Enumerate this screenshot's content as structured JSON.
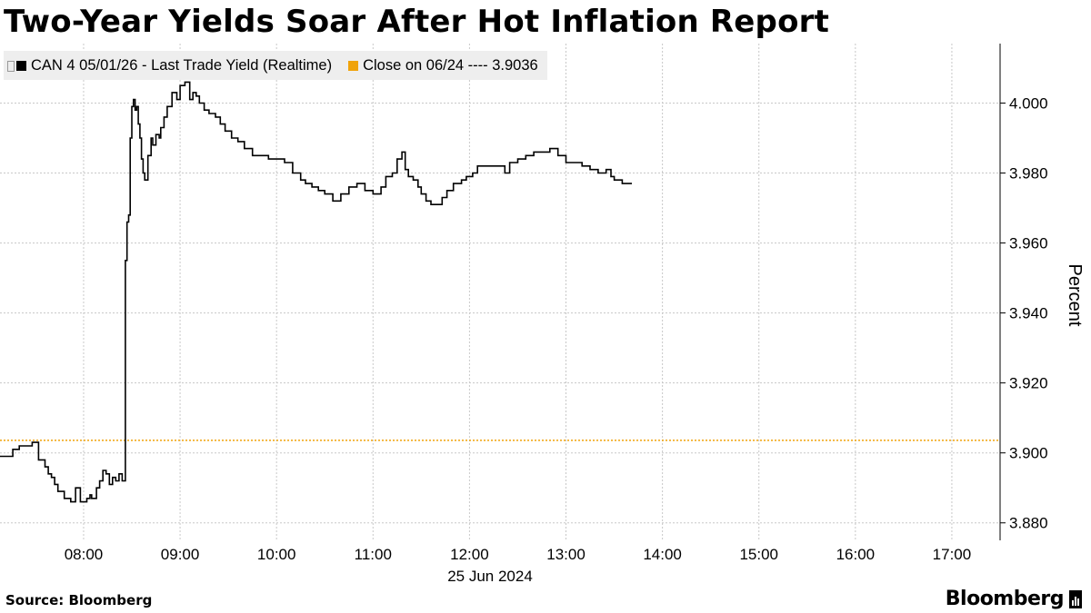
{
  "title": "Two-Year Yields Soar After Hot Inflation Report",
  "legend": {
    "series_label": "CAN 4 05/01/26 - Last Trade Yield (Realtime)",
    "close_label": "Close on 06/24 ---- 3.9036",
    "series_color": "#000000",
    "close_color": "#f0a30a"
  },
  "footer": {
    "source": "Source: Bloomberg",
    "brand": "Bloomberg"
  },
  "chart_data": {
    "type": "line",
    "ylabel": "Percent",
    "date_label": "25 Jun 2024",
    "ylim": [
      3.875,
      4.017
    ],
    "xlim": [
      "07:08",
      "17:30"
    ],
    "y_ticks": [
      "3.880",
      "3.900",
      "3.920",
      "3.940",
      "3.960",
      "3.980",
      "4.000"
    ],
    "x_ticks": [
      "08:00",
      "09:00",
      "10:00",
      "11:00",
      "12:00",
      "13:00",
      "14:00",
      "15:00",
      "16:00",
      "17:00"
    ],
    "grid": true,
    "reference_line": {
      "name": "Close on 06/24",
      "value": 3.9036
    },
    "series": [
      {
        "name": "CAN 4 05/01/26 - Last Trade Yield (Realtime)",
        "x": [
          "07:08",
          "07:12",
          "07:16",
          "07:20",
          "07:25",
          "07:28",
          "07:32",
          "07:36",
          "07:38",
          "07:40",
          "07:42",
          "07:44",
          "07:48",
          "07:52",
          "07:55",
          "07:58",
          "08:00",
          "08:02",
          "08:04",
          "08:05",
          "08:08",
          "08:10",
          "08:12",
          "08:14",
          "08:16",
          "08:18",
          "08:20",
          "08:22",
          "08:24",
          "08:26",
          "08:27",
          "08:28",
          "08:29",
          "08:30",
          "08:31",
          "08:32",
          "08:33",
          "08:34",
          "08:35",
          "08:36",
          "08:37",
          "08:38",
          "08:40",
          "08:42",
          "08:43",
          "08:45",
          "08:47",
          "08:48",
          "08:50",
          "08:52",
          "08:55",
          "08:58",
          "09:00",
          "09:03",
          "09:06",
          "09:08",
          "09:10",
          "09:12",
          "09:15",
          "09:18",
          "09:22",
          "09:25",
          "09:28",
          "09:32",
          "09:36",
          "09:40",
          "09:45",
          "09:50",
          "09:55",
          "10:00",
          "10:05",
          "10:10",
          "10:15",
          "10:18",
          "10:22",
          "10:26",
          "10:30",
          "10:35",
          "10:40",
          "10:45",
          "10:50",
          "10:55",
          "11:00",
          "11:05",
          "11:08",
          "11:12",
          "11:15",
          "11:18",
          "11:20",
          "11:22",
          "11:25",
          "11:28",
          "11:30",
          "11:33",
          "11:36",
          "11:40",
          "11:43",
          "11:46",
          "11:50",
          "11:55",
          "11:58",
          "12:02",
          "12:05",
          "12:08",
          "12:12",
          "12:15",
          "12:18",
          "12:22",
          "12:25",
          "12:30",
          "12:35",
          "12:40",
          "12:45",
          "12:50",
          "12:55",
          "13:00",
          "13:05",
          "13:10",
          "13:15",
          "13:18",
          "13:20",
          "13:22",
          "13:25",
          "13:28",
          "13:30",
          "13:35",
          "13:38",
          "13:41"
        ],
        "values": [
          3.899,
          3.899,
          3.901,
          3.902,
          3.902,
          3.903,
          3.898,
          3.896,
          3.894,
          3.893,
          3.891,
          3.889,
          3.887,
          3.886,
          3.89,
          3.886,
          3.886,
          3.887,
          3.888,
          3.887,
          3.89,
          3.892,
          3.895,
          3.894,
          3.891,
          3.893,
          3.892,
          3.894,
          3.892,
          3.955,
          3.966,
          3.968,
          3.99,
          3.999,
          4.001,
          3.998,
          3.999,
          3.994,
          3.99,
          3.984,
          3.98,
          3.978,
          3.985,
          3.99,
          3.988,
          3.991,
          3.99,
          3.993,
          3.996,
          3.999,
          4.003,
          4.001,
          4.005,
          4.006,
          4.001,
          4.003,
          4.002,
          4.0,
          3.998,
          3.997,
          3.996,
          3.994,
          3.992,
          3.99,
          3.989,
          3.987,
          3.985,
          3.985,
          3.984,
          3.984,
          3.983,
          3.98,
          3.978,
          3.977,
          3.976,
          3.975,
          3.974,
          3.972,
          3.974,
          3.976,
          3.977,
          3.975,
          3.974,
          3.976,
          3.979,
          3.98,
          3.984,
          3.986,
          3.981,
          3.979,
          3.978,
          3.976,
          3.974,
          3.972,
          3.971,
          3.971,
          3.973,
          3.975,
          3.977,
          3.978,
          3.979,
          3.98,
          3.982,
          3.982,
          3.982,
          3.982,
          3.982,
          3.98,
          3.983,
          3.984,
          3.985,
          3.986,
          3.986,
          3.987,
          3.985,
          3.983,
          3.983,
          3.982,
          3.981,
          3.981,
          3.98,
          3.98,
          3.981,
          3.979,
          3.978,
          3.977,
          3.977,
          3.977
        ]
      }
    ]
  }
}
